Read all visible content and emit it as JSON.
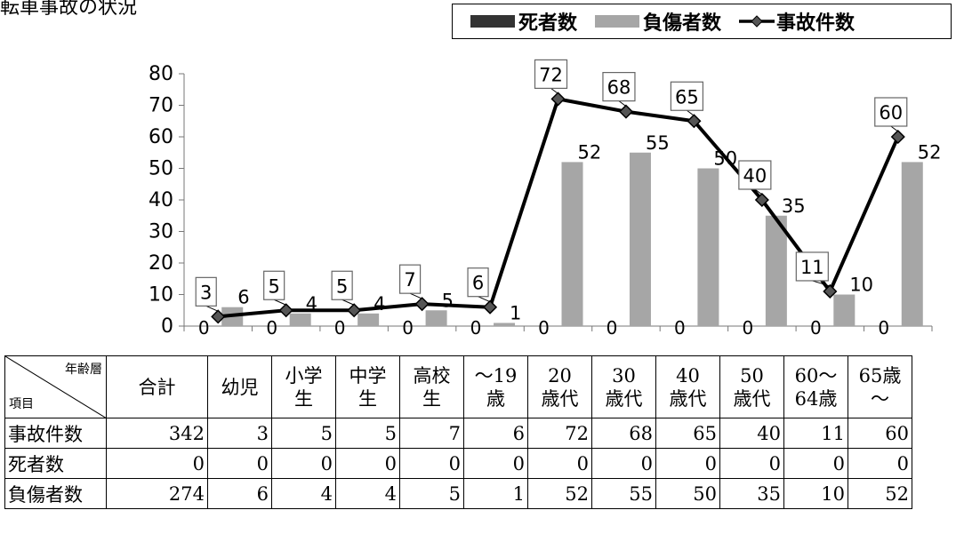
{
  "page": {
    "title": "転車事故の状況"
  },
  "legend": {
    "deaths": "死者数",
    "injured": "負傷者数",
    "accidents": "事故件数"
  },
  "colors": {
    "deaths": "#333333",
    "injured": "#a6a6a6",
    "accidents": "#000000",
    "marker": "#555555"
  },
  "chart_data": {
    "type": "bar",
    "categories": [
      "幼児",
      "小学生",
      "中学生",
      "高校生",
      "〜19歳",
      "20歳代",
      "30歳代",
      "40歳代",
      "50歳代",
      "60〜64歳",
      "65歳〜"
    ],
    "series": [
      {
        "name": "死者数",
        "type": "bar",
        "values": [
          0,
          0,
          0,
          0,
          0,
          0,
          0,
          0,
          0,
          0,
          0
        ]
      },
      {
        "name": "負傷者数",
        "type": "bar",
        "values": [
          6,
          4,
          4,
          5,
          1,
          52,
          55,
          50,
          35,
          10,
          52
        ]
      },
      {
        "name": "事故件数",
        "type": "line",
        "values": [
          3,
          5,
          5,
          7,
          6,
          72,
          68,
          65,
          40,
          11,
          60
        ]
      }
    ],
    "yticks": [
      "0",
      "10",
      "20",
      "30",
      "40",
      "50",
      "60",
      "70",
      "80"
    ],
    "ylim": [
      0,
      80
    ],
    "grid": false,
    "legend_position": "top-right"
  },
  "table": {
    "corner_top": "年齢層",
    "corner_bottom": "項目",
    "headers": [
      [
        "合計"
      ],
      [
        "幼児"
      ],
      [
        "小学",
        "生"
      ],
      [
        "中学",
        "生"
      ],
      [
        "高校",
        "生"
      ],
      [
        "〜19",
        "歳"
      ],
      [
        "20",
        "歳代"
      ],
      [
        "30",
        "歳代"
      ],
      [
        "40",
        "歳代"
      ],
      [
        "50",
        "歳代"
      ],
      [
        "60〜",
        "64歳"
      ],
      [
        "65歳",
        "〜"
      ]
    ],
    "rows": [
      {
        "label": "事故件数",
        "values": [
          "342",
          "3",
          "5",
          "5",
          "7",
          "6",
          "72",
          "68",
          "65",
          "40",
          "11",
          "60"
        ]
      },
      {
        "label": "死者数",
        "values": [
          "0",
          "0",
          "0",
          "0",
          "0",
          "0",
          "0",
          "0",
          "0",
          "0",
          "0",
          "0"
        ]
      },
      {
        "label": "負傷者数",
        "values": [
          "274",
          "6",
          "4",
          "4",
          "5",
          "1",
          "52",
          "55",
          "50",
          "35",
          "10",
          "52"
        ]
      }
    ]
  }
}
